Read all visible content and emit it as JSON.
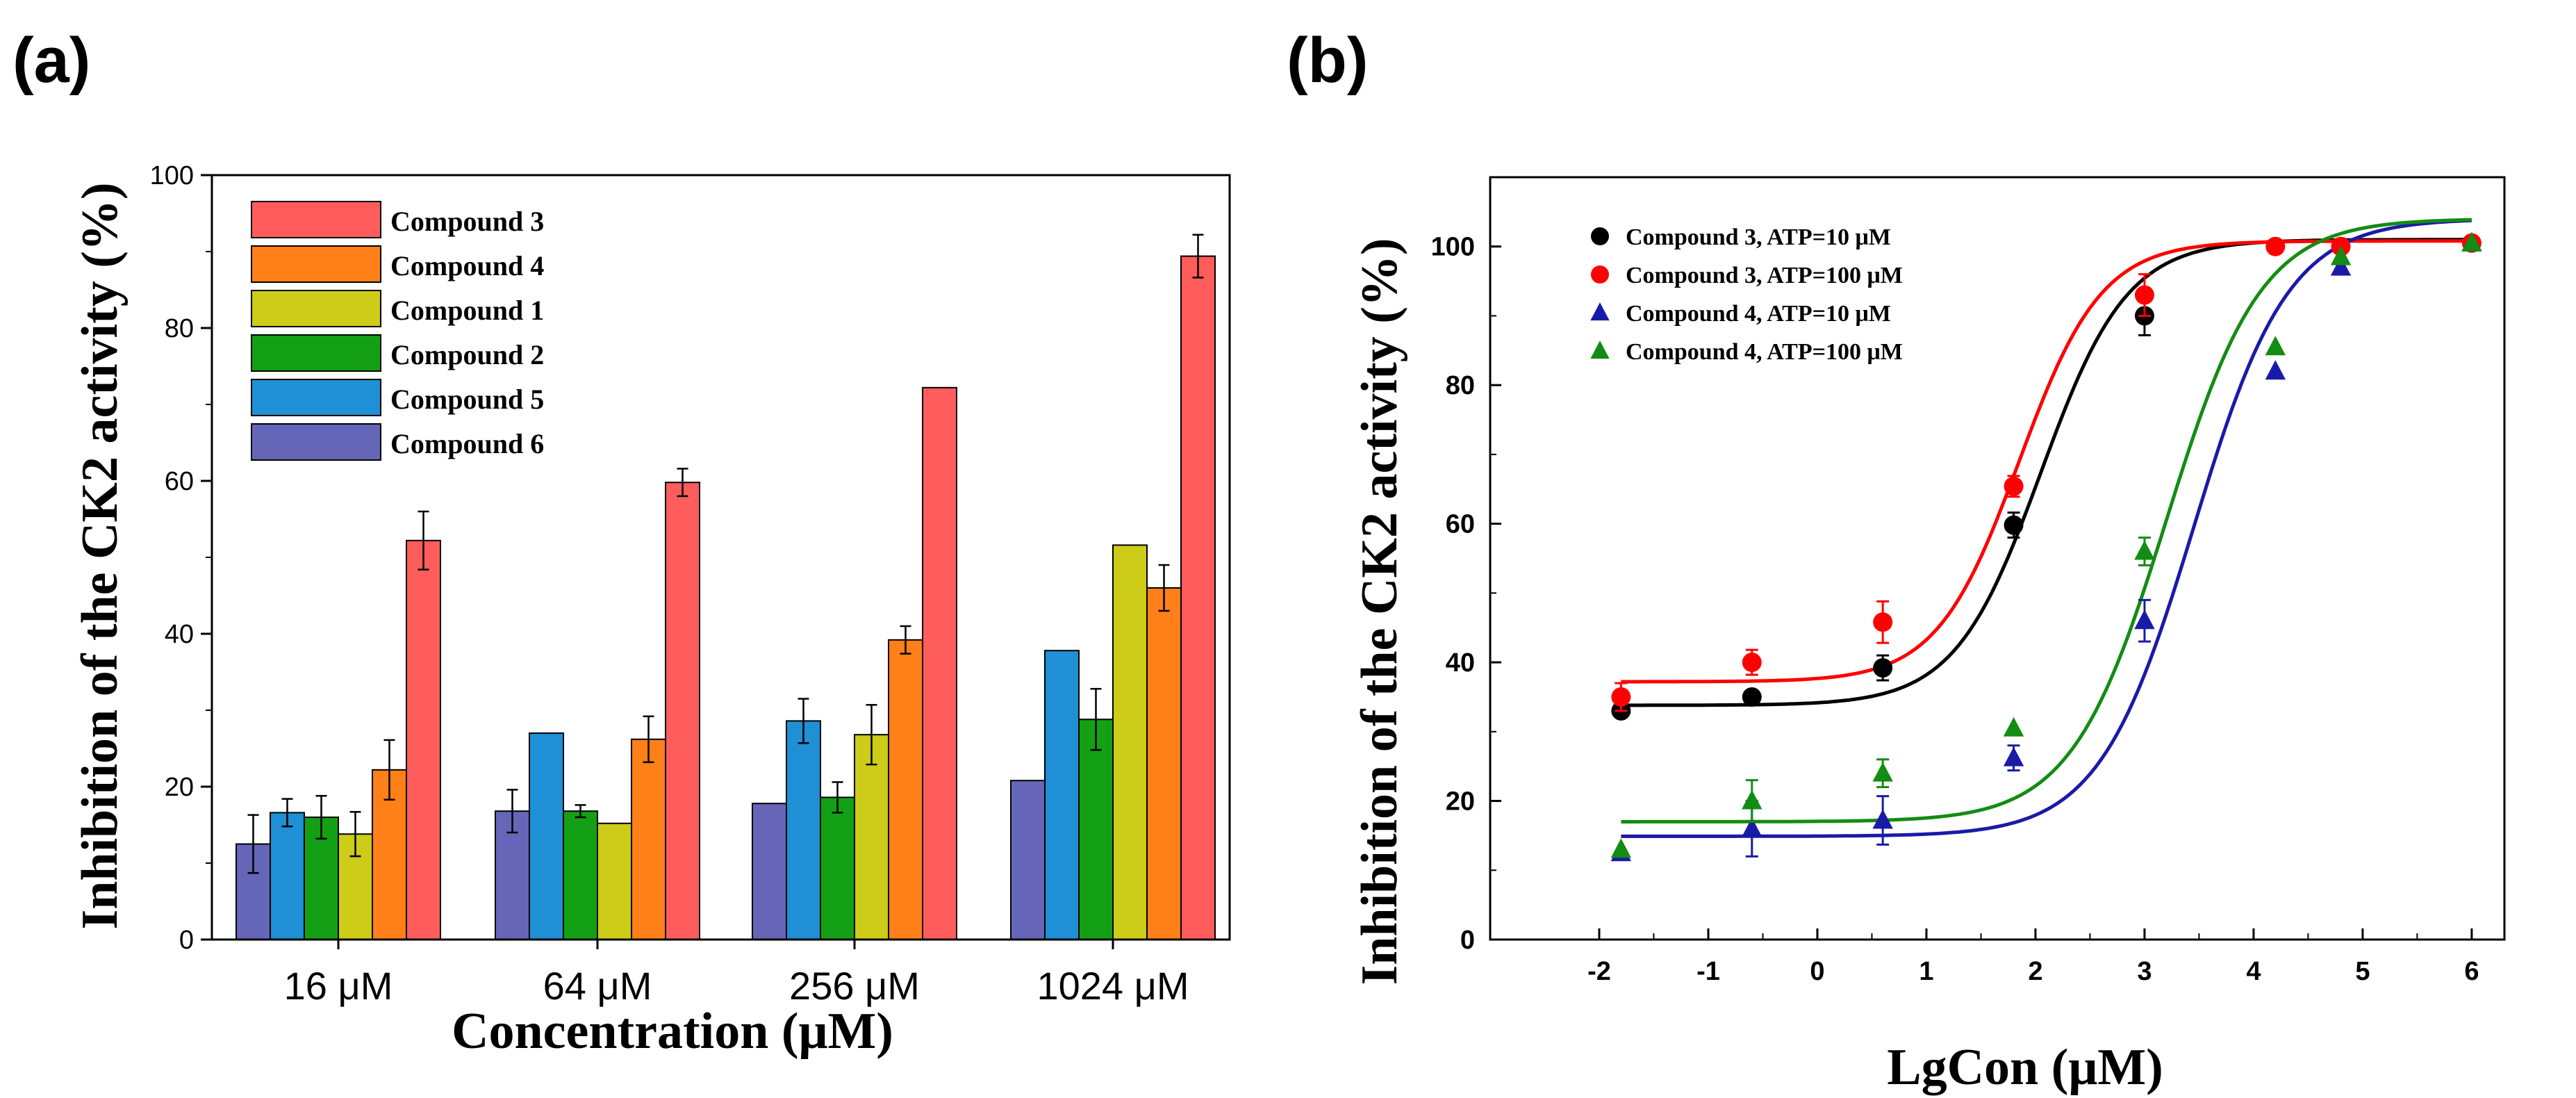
{
  "chart_data": [
    {
      "panel_label": "(a)",
      "type": "bar",
      "xlabel": "Concentration (μM)",
      "ylabel": "Inhibition of the CK2 activity (%)",
      "ylim": [
        0,
        100
      ],
      "yticks": [
        0,
        20,
        40,
        60,
        80,
        100
      ],
      "categories": [
        "16 μM",
        "64 μM",
        "256 μM",
        "1024 μM"
      ],
      "legend_position": "top-left",
      "series": [
        {
          "name": "Compound 6",
          "color": "#6666b8",
          "values": [
            12.5,
            16.8,
            17.8,
            20.8
          ],
          "errors": [
            3.8,
            2.8,
            null,
            null
          ]
        },
        {
          "name": "Compound 5",
          "color": "#1f8fd6",
          "values": [
            16.6,
            27.0,
            28.6,
            37.8
          ],
          "errors": [
            1.8,
            null,
            2.9,
            null
          ]
        },
        {
          "name": "Compound 2",
          "color": "#14a014",
          "values": [
            16.0,
            16.8,
            18.6,
            28.8
          ],
          "errors": [
            2.8,
            0.8,
            2.0,
            4.0
          ]
        },
        {
          "name": "Compound 1",
          "color": "#cccc19",
          "values": [
            13.8,
            15.2,
            26.8,
            51.6
          ],
          "errors": [
            2.9,
            null,
            3.9,
            null
          ]
        },
        {
          "name": "Compound 4",
          "color": "#ff8018",
          "values": [
            22.2,
            26.2,
            39.2,
            46.0
          ],
          "errors": [
            3.9,
            3.0,
            1.8,
            3.0
          ]
        },
        {
          "name": "Compound 3",
          "color": "#ff5c5c",
          "values": [
            52.2,
            59.8,
            72.2,
            89.4
          ],
          "errors": [
            3.8,
            1.8,
            null,
            2.8
          ]
        }
      ],
      "legend_order": [
        "Compound 3",
        "Compound 4",
        "Compound 1",
        "Compound 2",
        "Compound 5",
        "Compound 6"
      ]
    },
    {
      "panel_label": "(b)",
      "type": "scatter",
      "xlabel": "LgCon (μM)",
      "ylabel": "Inhibition of the CK2 activity (%)",
      "xlim": [
        -3,
        6.3
      ],
      "ylim": [
        0,
        110
      ],
      "xticks": [
        -2,
        -1,
        0,
        1,
        2,
        3,
        4,
        5,
        6
      ],
      "yticks": [
        0,
        20,
        40,
        60,
        80,
        100
      ],
      "legend_position": "top-left",
      "series": [
        {
          "name": "Compound 3, ATP=10 μM",
          "color": "#000000",
          "marker": "circle",
          "x": [
            -1.8,
            -0.6,
            0.6,
            1.8,
            3.0
          ],
          "y": [
            33.0,
            35.0,
            39.2,
            59.8,
            90.0
          ],
          "errors": [
            0.8,
            0.8,
            1.8,
            1.8,
            2.8
          ],
          "fit": {
            "bottom": 33.8,
            "top": 101.0,
            "logEC50": 2.05,
            "hill": 1.1
          }
        },
        {
          "name": "Compound 3, ATP=100 μM",
          "color": "#ff0000",
          "marker": "circle",
          "x": [
            -1.8,
            -0.6,
            0.6,
            1.8,
            3.0,
            4.2,
            4.8,
            6.0
          ],
          "y": [
            35.0,
            40.0,
            45.8,
            65.4,
            93.0,
            100.0,
            100.0,
            100.5
          ],
          "errors": [
            2.0,
            1.8,
            3.0,
            1.5,
            3.0,
            null,
            null,
            null
          ],
          "fit": {
            "bottom": 37.2,
            "top": 100.8,
            "logEC50": 1.85,
            "hill": 1.15
          }
        },
        {
          "name": "Compound 4, ATP=10 μM",
          "color": "#1a1aa8",
          "marker": "triangle",
          "x": [
            -1.8,
            -0.6,
            0.6,
            1.8,
            3.0,
            4.2,
            4.8,
            6.0
          ],
          "y": [
            12.5,
            16.0,
            17.2,
            26.2,
            46.0,
            82.0,
            97.0,
            100.5
          ],
          "errors": [
            null,
            4.0,
            3.5,
            1.8,
            3.0,
            null,
            null,
            null
          ],
          "fit": {
            "bottom": 14.9,
            "top": 104.0,
            "logEC50": 3.45,
            "hill": 1.0
          }
        },
        {
          "name": "Compound 4, ATP=100 μM",
          "color": "#138c13",
          "marker": "triangle",
          "x": [
            -1.8,
            -0.6,
            0.6,
            1.8,
            3.0,
            4.2,
            4.8,
            6.0
          ],
          "y": [
            13.0,
            20.0,
            24.0,
            30.5,
            56.0,
            85.5,
            98.5,
            100.5
          ],
          "errors": [
            null,
            3.0,
            2.0,
            null,
            2.0,
            null,
            null,
            null
          ],
          "fit": {
            "bottom": 17.0,
            "top": 104.0,
            "logEC50": 3.2,
            "hill": 1.0
          }
        }
      ]
    }
  ]
}
